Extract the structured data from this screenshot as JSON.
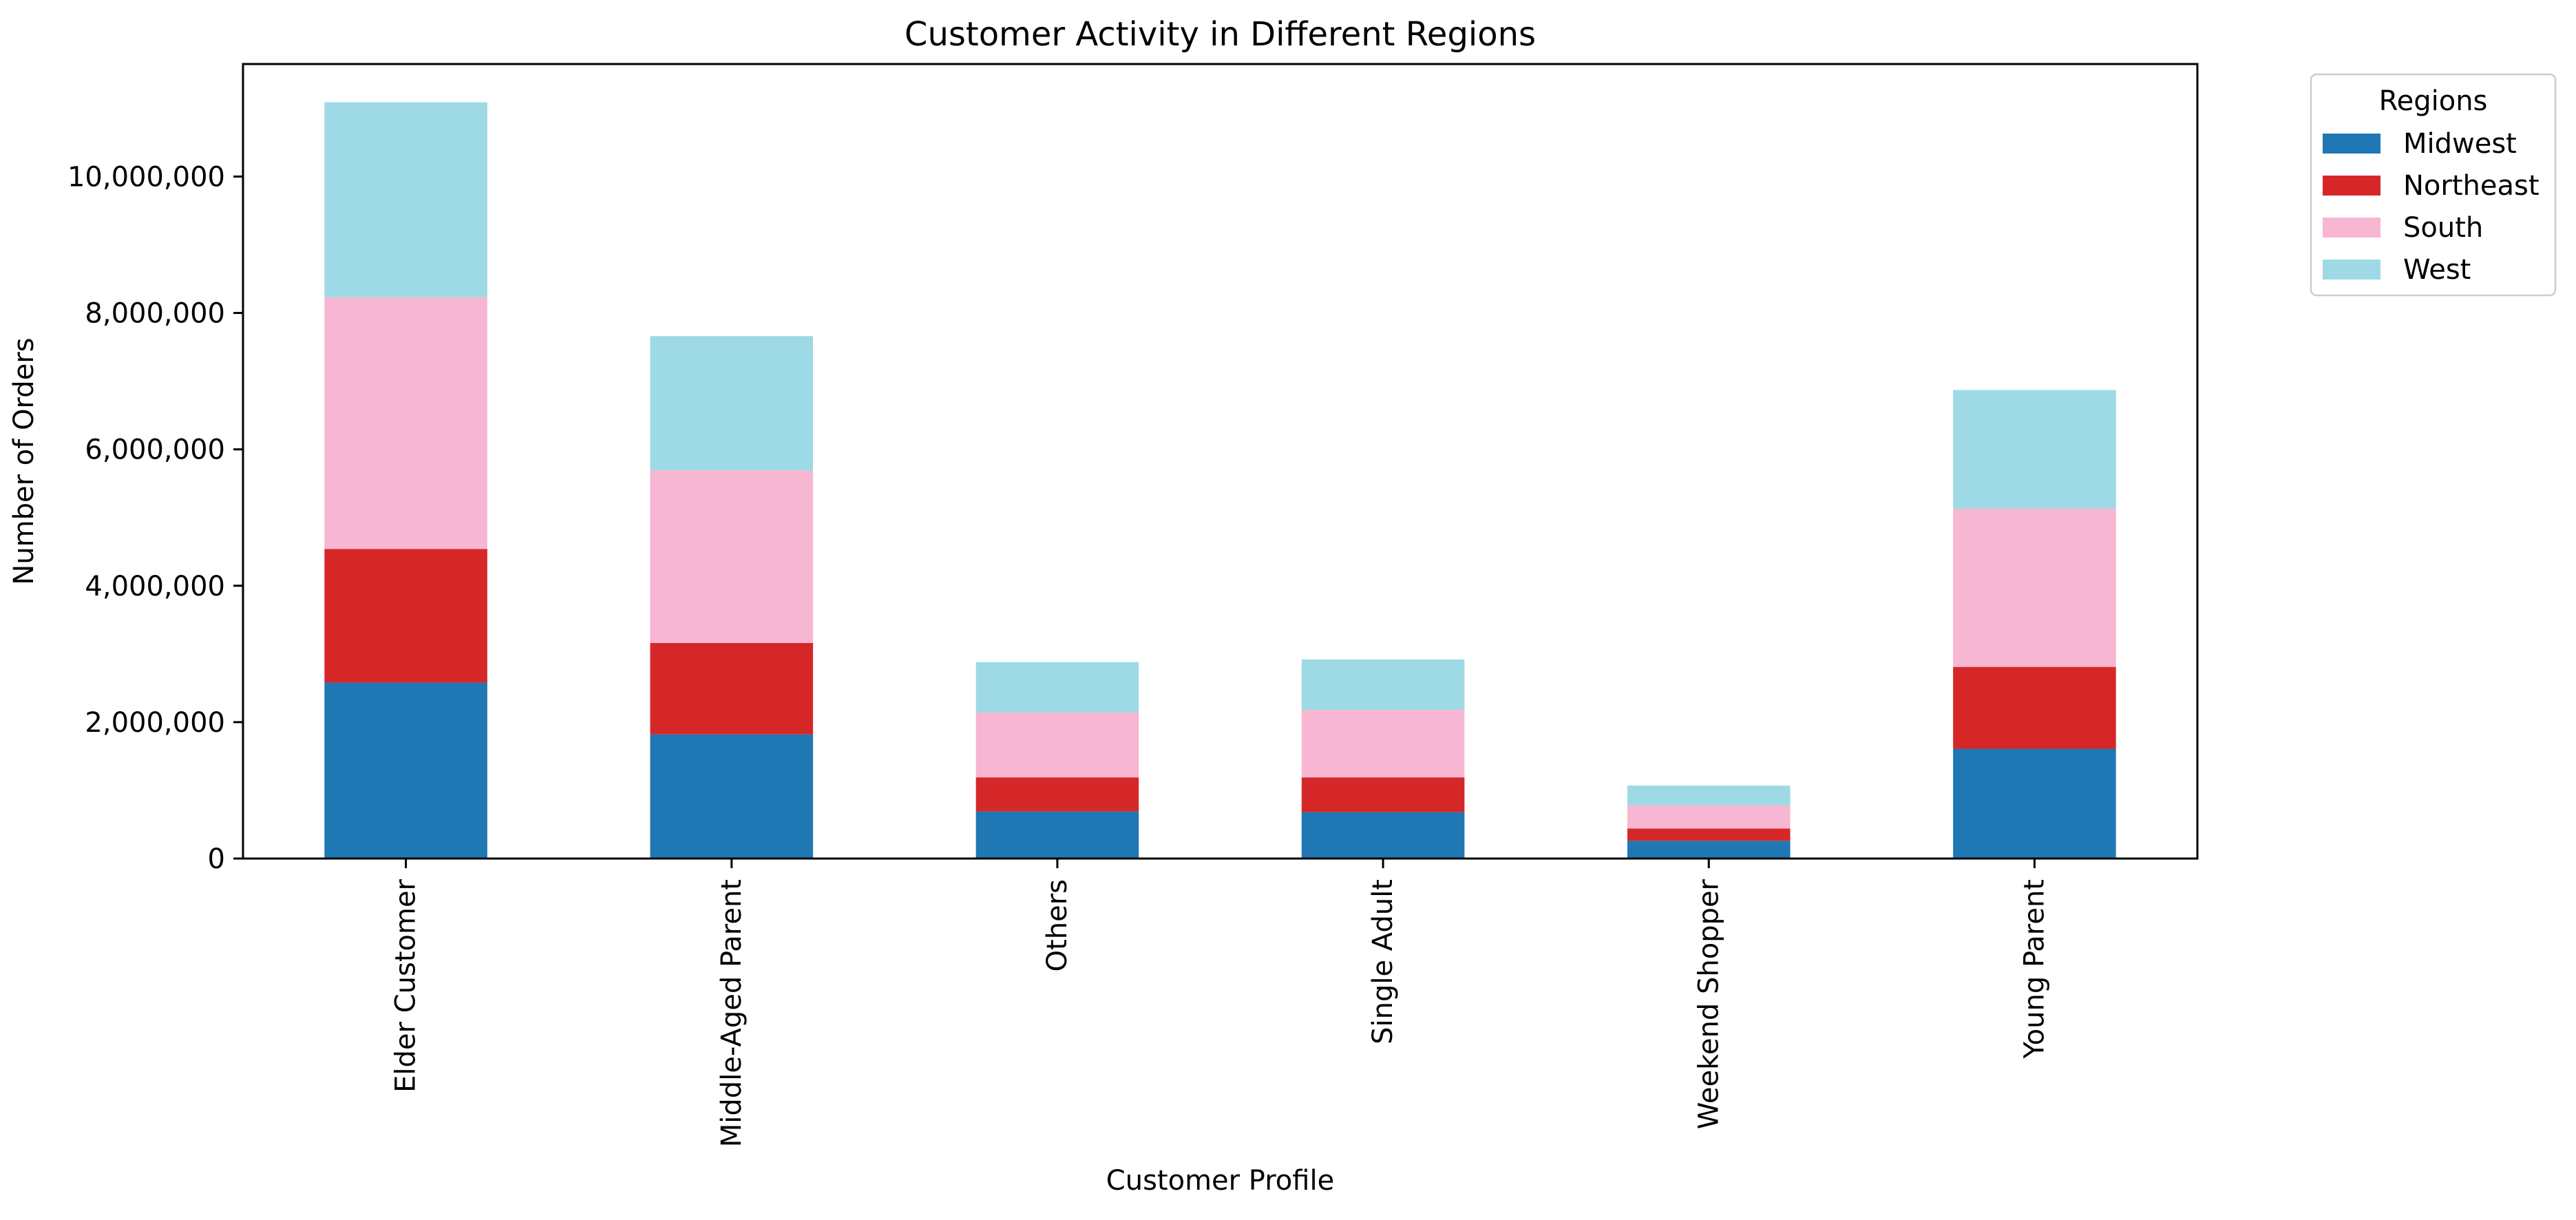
{
  "chart_data": {
    "type": "bar",
    "stacked": true,
    "title": "Customer Activity in Different Regions",
    "xlabel": "Customer Profile",
    "ylabel": "Number of Orders",
    "categories": [
      "Elder Customer",
      "Middle-Aged Parent",
      "Others",
      "Single Adult",
      "Weekend Shopper",
      "Young Parent"
    ],
    "series": [
      {
        "name": "Midwest",
        "color": "#1f77b4",
        "values": [
          2580000,
          1820000,
          690000,
          680000,
          260000,
          1610000
        ]
      },
      {
        "name": "Northeast",
        "color": "#d62728",
        "values": [
          1960000,
          1340000,
          500000,
          510000,
          180000,
          1200000
        ]
      },
      {
        "name": "South",
        "color": "#f7b6d2",
        "values": [
          3690000,
          2530000,
          950000,
          990000,
          340000,
          2320000
        ]
      },
      {
        "name": "West",
        "color": "#9edae5",
        "values": [
          2860000,
          1970000,
          740000,
          740000,
          290000,
          1740000
        ]
      }
    ],
    "ylim": [
      0,
      11650000
    ],
    "yticks": [
      0,
      2000000,
      4000000,
      6000000,
      8000000,
      10000000
    ],
    "ytick_labels": [
      "0",
      "2,000,000",
      "4,000,000",
      "6,000,000",
      "8,000,000",
      "10,000,000"
    ],
    "legend": {
      "title": "Regions",
      "position": "outside-top-right"
    },
    "grid": false
  }
}
